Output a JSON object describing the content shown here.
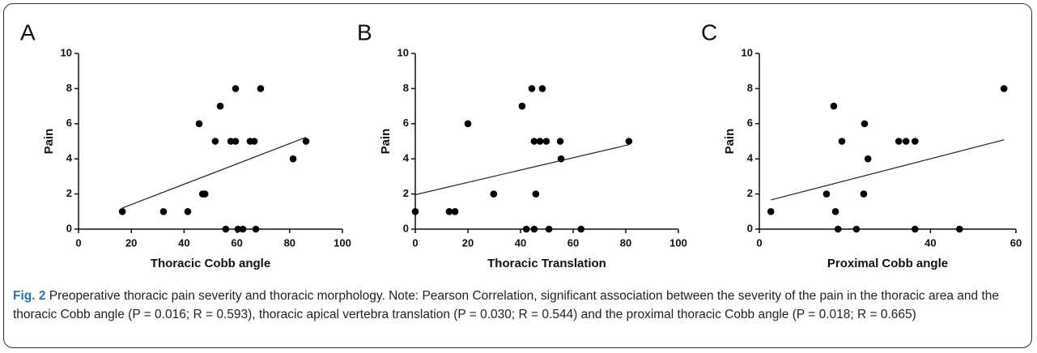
{
  "chart_data": [
    {
      "type": "scatter",
      "panel": "A",
      "xlabel": "Thoracic Cobb angle",
      "ylabel": "Pain",
      "x": [
        16.6,
        32.2,
        41.4,
        45.7,
        47.0,
        47.9,
        53.7,
        51.8,
        55.8,
        57.7,
        59.5,
        59.5,
        60.4,
        62.3,
        67.2,
        65.0,
        66.6,
        69.0,
        81.3,
        86.2
      ],
      "values": [
        1,
        1,
        1,
        6,
        2,
        2,
        7,
        5,
        0,
        5,
        5,
        8,
        0,
        0,
        0,
        5,
        5,
        8,
        4,
        5
      ],
      "xlim": [
        0,
        100
      ],
      "xticks": [
        0,
        20,
        40,
        60,
        80,
        100
      ],
      "ylim": [
        0,
        10
      ],
      "yticks": [
        0,
        2,
        4,
        6,
        8,
        10
      ],
      "color": "#000000"
    },
    {
      "type": "scatter",
      "panel": "B",
      "xlabel": "Thoracic Translation",
      "ylabel": "Pain",
      "x": [
        0,
        12.9,
        15.1,
        20.0,
        29.8,
        40.6,
        42.2,
        44.3,
        45.2,
        45.2,
        45.8,
        47.4,
        48.3,
        49.8,
        50.8,
        55.1,
        55.4,
        63.0,
        81.2
      ],
      "values": [
        1,
        1,
        1,
        6,
        2,
        7,
        0,
        8,
        5,
        0,
        2,
        5,
        8,
        5,
        0,
        5,
        4,
        0,
        5
      ],
      "xlim": [
        0,
        100
      ],
      "xticks": [
        0,
        20,
        40,
        60,
        80,
        100
      ],
      "ylim": [
        0,
        10
      ],
      "yticks": [
        0,
        2,
        4,
        6,
        8,
        10
      ],
      "color": "#000000"
    },
    {
      "type": "scatter",
      "panel": "C",
      "xlabel": "Proximal Cobb angle",
      "ylabel": "Pain",
      "x": [
        2.7,
        15.7,
        17.4,
        17.8,
        18.4,
        19.3,
        22.7,
        24.4,
        24.6,
        25.4,
        32.6,
        34.3,
        36.4,
        36.4,
        46.8,
        57.2
      ],
      "values": [
        1,
        2,
        7,
        1,
        0,
        5,
        0,
        2,
        6,
        4,
        5,
        5,
        5,
        0,
        0,
        8
      ],
      "xlim": [
        0,
        60
      ],
      "xticks": [
        0,
        40,
        60
      ],
      "ylim": [
        0,
        10
      ],
      "yticks": [
        0,
        2,
        4,
        6,
        8,
        10
      ],
      "color": "#000000"
    }
  ],
  "caption": {
    "label": "Fig. 2",
    "text": "Preoperative thoracic pain severity and thoracic morphology. Note: Pearson Correlation, significant association between the severity of the pain in the thoracic area and the thoracic Cobb angle (P = 0.016; R = 0.593), thoracic apical vertebra translation (P = 0.030; R = 0.544) and the proximal thoracic Cobb angle (P = 0.018; R = 0.665)"
  }
}
